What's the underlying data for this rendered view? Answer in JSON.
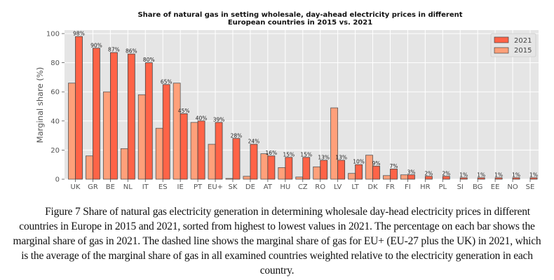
{
  "chart_data": {
    "type": "bar",
    "title": "Share of natural gas in setting wholesale, day-ahead electricity prices in different\nEuropean countries in 2015 vs. 2021",
    "title_lines": [
      "Share of natural gas in setting wholesale, day-ahead electricity prices in different",
      "European countries in 2015 vs. 2021"
    ],
    "xlabel": "",
    "ylabel": "Marginal share (%)",
    "ylim": [
      0,
      100
    ],
    "yticks": [
      0,
      20,
      40,
      60,
      80,
      100
    ],
    "grid": true,
    "legend_position": "top-right",
    "categories": [
      "UK",
      "GR",
      "BE",
      "NL",
      "IT",
      "ES",
      "IE",
      "PT",
      "EU+",
      "SK",
      "DE",
      "AT",
      "HU",
      "CZ",
      "RO",
      "LV",
      "LT",
      "DK",
      "FR",
      "FI",
      "HR",
      "PL",
      "SI",
      "BG",
      "EE",
      "NO",
      "SE"
    ],
    "series": [
      {
        "name": "2021",
        "color": "#ff6347",
        "values": [
          98,
          90,
          87,
          86,
          80,
          65,
          45,
          40,
          39,
          28,
          24,
          16,
          15,
          15,
          13,
          13,
          10,
          9,
          7,
          3,
          2,
          2,
          1,
          1,
          1,
          1,
          1
        ],
        "labels": [
          "98%",
          "90%",
          "87%",
          "86%",
          "80%",
          "65%",
          "45%",
          "40%",
          "39%",
          "28%",
          "24%",
          "16%",
          "15%",
          "15%",
          "13%",
          "13%",
          "10%",
          "9%",
          "7%",
          "3%",
          "2%",
          "2%",
          "1%",
          "1%",
          "1%",
          "1%",
          "1%"
        ]
      },
      {
        "name": "2015",
        "color": "#ffa07a",
        "values": [
          66,
          16,
          60,
          21,
          58,
          35,
          66,
          39,
          24,
          0.5,
          2,
          17.5,
          8,
          1.5,
          8.5,
          49,
          4,
          16.5,
          2.5,
          3,
          0,
          0,
          0,
          0,
          0,
          0,
          0
        ]
      }
    ]
  },
  "caption": "Figure 7 Share of natural gas electricity generation in determining wholesale day-head electricity prices in different countries in Europe in 2015 and 2021, sorted from highest to lowest values in 2021. The percentage on each bar shows the marginal share of gas in 2021. The dashed line shows the marginal share of gas for EU+ (EU-27 plus the UK) in 2021, which is the average of the marginal share of gas in all examined countries weighted relative to the electricity generation in each country."
}
